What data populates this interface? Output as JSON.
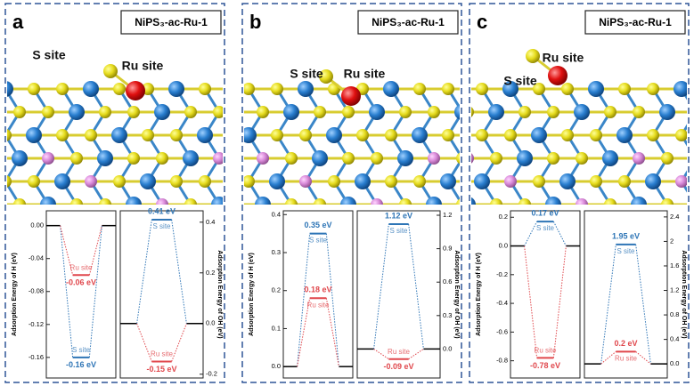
{
  "panels": [
    {
      "label": "a",
      "title": "NiPS₃-ac-Ru-1",
      "site_labels": [
        "S site",
        "Ru site"
      ]
    },
    {
      "label": "b",
      "title": "NiPS₃-ac-Ru-1",
      "site_labels": [
        "S site",
        "Ru site"
      ]
    },
    {
      "label": "c",
      "title": "NiPS₃-ac-Ru-1",
      "site_labels": [
        "S site",
        "Ru site"
      ]
    }
  ],
  "chart_data": [
    {
      "type": "energy",
      "ylabel": "Adsorption Energy of H (eV)",
      "baseline": 0,
      "ylim": [
        -0.185,
        0.018
      ],
      "yticks": [
        {
          "value": 0,
          "label": "0.00"
        },
        {
          "value": -0.04,
          "label": "-0.04"
        },
        {
          "value": -0.08,
          "label": "-0.08"
        },
        {
          "value": -0.12,
          "label": "-0.12"
        },
        {
          "value": -0.16,
          "label": "-0.16"
        }
      ],
      "series": [
        {
          "name": "S site",
          "color": "#2e75b6",
          "values": [
            -0.16
          ],
          "value_labels": [
            "-0.16 eV"
          ]
        },
        {
          "name": "Ru site",
          "color": "#e0474c",
          "values": [
            -0.06
          ],
          "value_labels": [
            "-0.06 eV"
          ]
        }
      ]
    },
    {
      "type": "energy",
      "ylabel": "Adsorption Energy of OH (eV)",
      "baseline": 0,
      "ylim": [
        -0.215,
        0.445
      ],
      "yticks": [
        0.4,
        0.2,
        {
          "value": 0,
          "label": "0.0"
        },
        -0.2
      ],
      "series": [
        {
          "name": "S site",
          "color": "#2e75b6",
          "values": [
            0.41
          ],
          "value_labels": [
            "0.41 eV"
          ]
        },
        {
          "name": "Ru site",
          "color": "#e0474c",
          "values": [
            -0.15
          ],
          "value_labels": [
            "-0.15 eV"
          ]
        }
      ]
    },
    {
      "type": "energy",
      "ylabel": "Adsorption Energy of H (eV)",
      "baseline": 0,
      "ylim": [
        -0.03,
        0.41
      ],
      "yticks": [
        0.4,
        0.3,
        0.2,
        0.1,
        {
          "value": 0,
          "label": "0.0"
        }
      ],
      "series": [
        {
          "name": "S site",
          "color": "#2e75b6",
          "values": [
            0.35
          ],
          "value_labels": [
            "0.35 eV"
          ]
        },
        {
          "name": "Ru site",
          "color": "#e0474c",
          "values": [
            0.18
          ],
          "value_labels": [
            "0.18 eV"
          ]
        }
      ]
    },
    {
      "type": "energy",
      "ylabel": "Adsorption Energy of OH (eV)",
      "baseline": 0,
      "ylim": [
        -0.26,
        1.24
      ],
      "yticks": [
        1.2,
        0.9,
        0.6,
        0.3,
        {
          "value": 0,
          "label": "0.0"
        }
      ],
      "series": [
        {
          "name": "S site",
          "color": "#2e75b6",
          "values": [
            1.12
          ],
          "value_labels": [
            "1.12 eV"
          ]
        },
        {
          "name": "Ru site",
          "color": "#e0474c",
          "values": [
            -0.09
          ],
          "value_labels": [
            "-0.09 eV"
          ]
        }
      ]
    },
    {
      "type": "energy",
      "ylabel": "Adsorption Energy of H (eV)",
      "baseline": 0,
      "ylim": [
        -0.92,
        0.245
      ],
      "yticks": [
        0.2,
        {
          "value": 0,
          "label": "0.0"
        },
        -0.2,
        -0.4,
        -0.6,
        -0.8
      ],
      "series": [
        {
          "name": "S site",
          "color": "#2e75b6",
          "values": [
            0.17
          ],
          "value_labels": [
            "0.17 eV"
          ]
        },
        {
          "name": "Ru site",
          "color": "#e0474c",
          "values": [
            -0.78
          ],
          "value_labels": [
            "-0.78 eV"
          ]
        }
      ]
    },
    {
      "type": "energy",
      "ylabel": "Adsorption Energy of OH (eV)",
      "baseline": 0,
      "ylim": [
        -0.23,
        2.5
      ],
      "yticks": [
        2.4,
        2.0,
        1.6,
        1.2,
        0.8,
        0.4,
        {
          "value": 0,
          "label": "0.0"
        }
      ],
      "series": [
        {
          "name": "S site",
          "color": "#2e75b6",
          "values": [
            1.95
          ],
          "value_labels": [
            "1.95 eV"
          ]
        },
        {
          "name": "Ru site",
          "color": "#e0474c",
          "values": [
            0.2
          ],
          "value_labels": [
            "0.2 eV"
          ]
        }
      ]
    }
  ]
}
